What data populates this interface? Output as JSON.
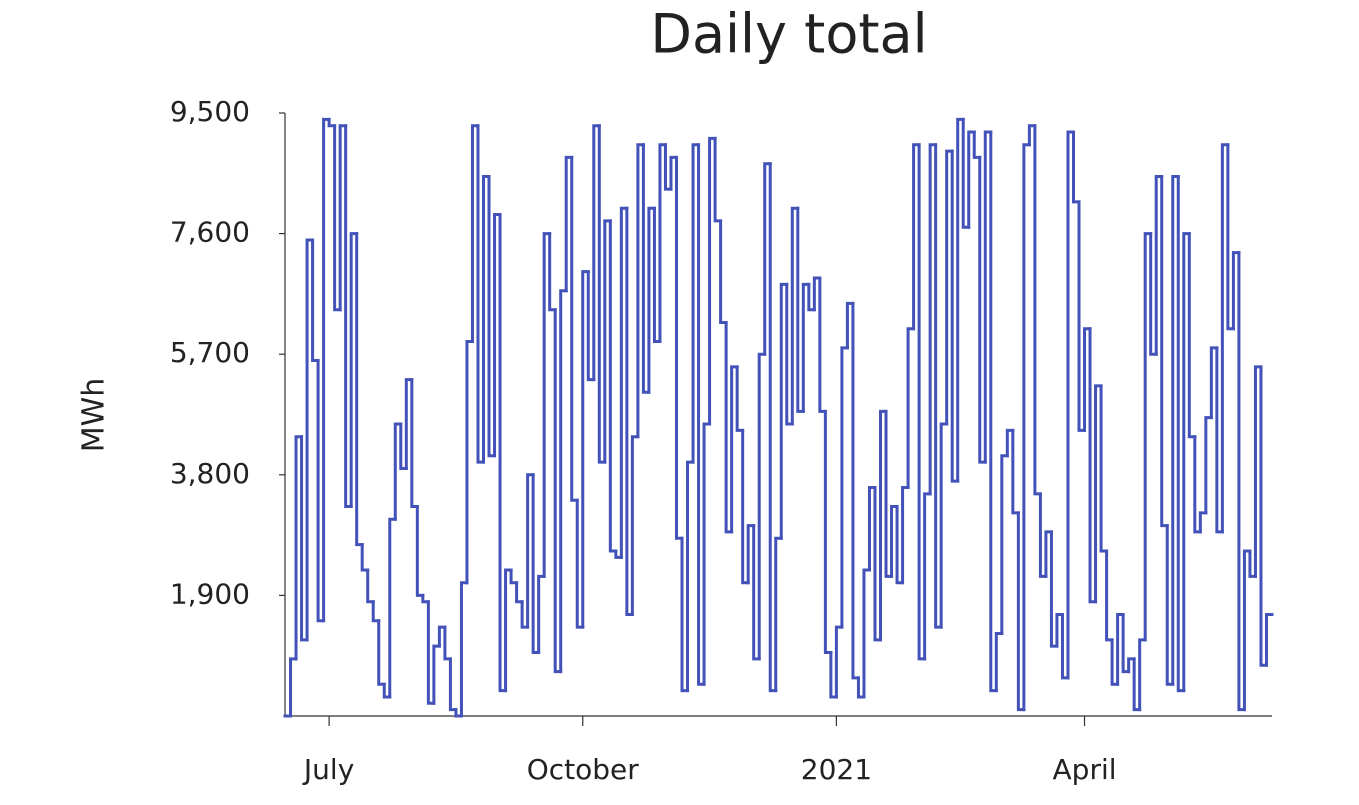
{
  "chart_data": {
    "type": "step",
    "title": "Daily total",
    "y_label": "MWh",
    "categories": [
      null,
      null,
      null,
      null,
      null,
      null,
      null,
      null,
      "July",
      null,
      null,
      null,
      null,
      null,
      null,
      null,
      null,
      null,
      null,
      null,
      null,
      null,
      null,
      null,
      null,
      null,
      null,
      null,
      null,
      null,
      null,
      null,
      null,
      null,
      null,
      null,
      null,
      null,
      null,
      null,
      null,
      null,
      null,
      null,
      null,
      null,
      null,
      null,
      null,
      null,
      null,
      null,
      null,
      null,
      "October",
      null,
      null,
      null,
      null,
      null,
      null,
      null,
      null,
      null,
      null,
      null,
      null,
      null,
      null,
      null,
      null,
      null,
      null,
      null,
      null,
      null,
      null,
      null,
      null,
      null,
      null,
      null,
      null,
      null,
      null,
      null,
      null,
      null,
      null,
      null,
      null,
      null,
      null,
      null,
      null,
      null,
      null,
      null,
      null,
      null,
      "2021",
      null,
      null,
      null,
      null,
      null,
      null,
      null,
      null,
      null,
      null,
      null,
      null,
      null,
      null,
      null,
      null,
      null,
      null,
      null,
      null,
      null,
      null,
      null,
      null,
      null,
      null,
      null,
      null,
      null,
      null,
      null,
      null,
      null,
      null,
      null,
      null,
      null,
      null,
      null,
      null,
      null,
      null,
      null,
      null,
      "April",
      null,
      null,
      null,
      null,
      null,
      null,
      null,
      null,
      null,
      null,
      null,
      null,
      null,
      null,
      null,
      null,
      null,
      null,
      null,
      null,
      null,
      null,
      null,
      null,
      null,
      null,
      null,
      null,
      null,
      null,
      null,
      null,
      null
    ],
    "series": [
      {
        "name": "Daily total",
        "color": "#4252b8",
        "values": [
          0,
          900,
          4400,
          1200,
          7500,
          5600,
          1500,
          9400,
          9300,
          6400,
          9300,
          3300,
          7600,
          2700,
          2300,
          1800,
          1500,
          500,
          300,
          3100,
          4600,
          3900,
          5300,
          3300,
          1900,
          1800,
          200,
          1100,
          1400,
          900,
          100,
          0,
          2100,
          5900,
          9300,
          4000,
          8500,
          4100,
          7900,
          400,
          2300,
          2100,
          1800,
          1400,
          3800,
          1000,
          2200,
          7600,
          6400,
          700,
          6700,
          8800,
          3400,
          1400,
          7000,
          5300,
          9300,
          4000,
          7800,
          2600,
          2500,
          8000,
          1600,
          4400,
          9000,
          5100,
          8000,
          5900,
          9000,
          8300,
          8800,
          2800,
          400,
          4000,
          9000,
          500,
          4600,
          9100,
          7800,
          6200,
          2900,
          5500,
          4500,
          2100,
          3000,
          900,
          5700,
          8700,
          400,
          2800,
          6800,
          4600,
          8000,
          4800,
          6800,
          6400,
          6900,
          4800,
          1000,
          300,
          1400,
          5800,
          6500,
          600,
          300,
          2300,
          3600,
          1200,
          4800,
          2200,
          3300,
          2100,
          3600,
          6100,
          9000,
          900,
          3500,
          9000,
          1400,
          4600,
          8900,
          3700,
          9400,
          7700,
          9200,
          8800,
          4000,
          9200,
          400,
          1300,
          4100,
          4500,
          3200,
          100,
          9000,
          9300,
          3500,
          2200,
          2900,
          1100,
          1600,
          600,
          9200,
          8100,
          4500,
          6100,
          1800,
          5200,
          2600,
          1200,
          500,
          1600,
          700,
          900,
          100,
          1200,
          7600,
          5700,
          8500,
          3000,
          500,
          8500,
          400,
          7600,
          4400,
          2900,
          3200,
          4700,
          5800,
          2900,
          9000,
          6100,
          7300,
          100,
          2600,
          2200,
          5500,
          800,
          1600
        ]
      }
    ],
    "ylim": [
      0,
      9500
    ],
    "yticks": [
      {
        "value": 1900,
        "label": "1,900"
      },
      {
        "value": 3800,
        "label": "3,800"
      },
      {
        "value": 5700,
        "label": "5,700"
      },
      {
        "value": 7600,
        "label": "7,600"
      },
      {
        "value": 9500,
        "label": "9,500"
      }
    ],
    "grid": false
  }
}
